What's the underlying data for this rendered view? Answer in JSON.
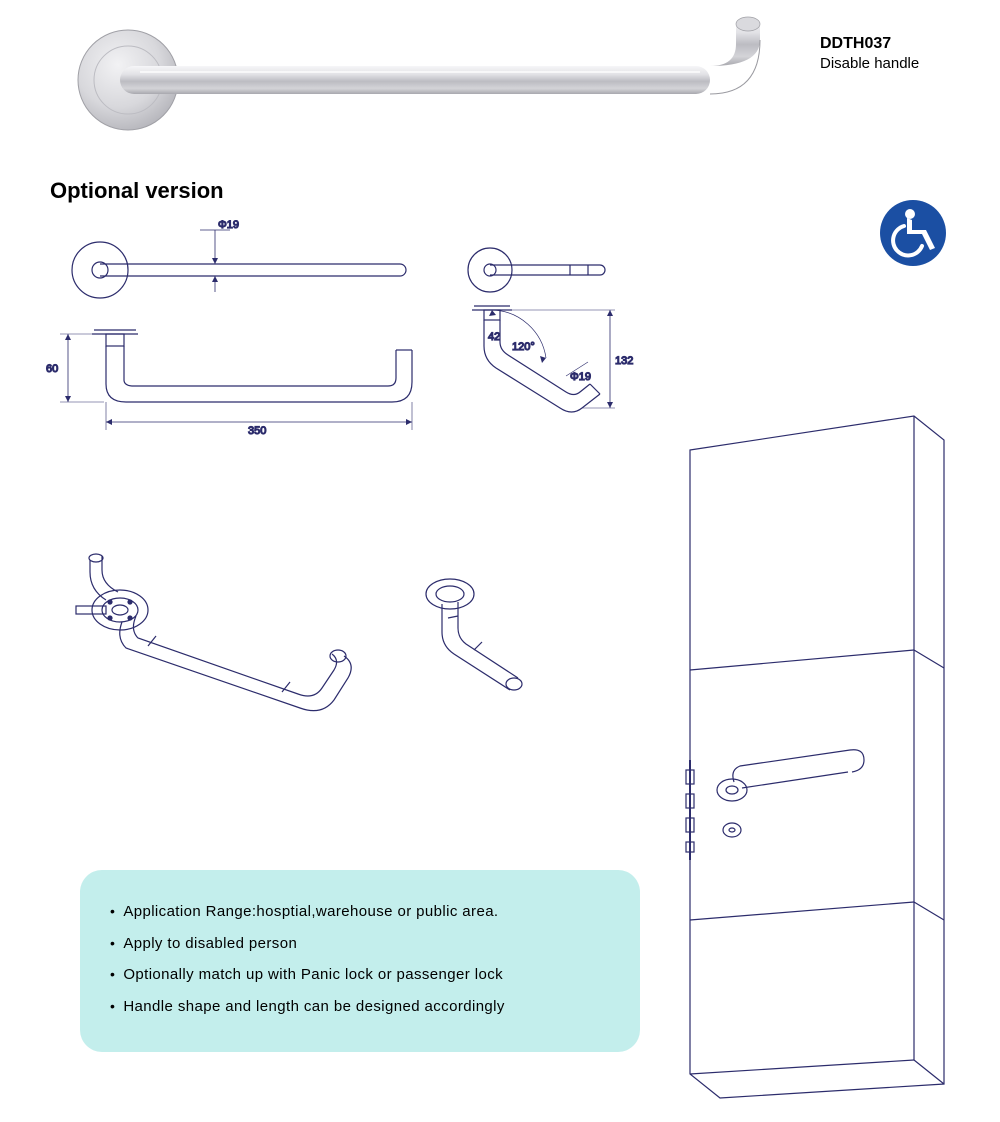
{
  "product": {
    "code": "DDTH037",
    "name": "Disable handle"
  },
  "section_title": "Optional version",
  "colors": {
    "line": "#2c2c6c",
    "handle_light": "#e8e8ea",
    "handle_mid": "#c8c8cc",
    "handle_dark": "#9a9aa0",
    "info_bg": "#c3eeec",
    "badge_bg": "#1b4fa3",
    "badge_fg": "#ffffff",
    "text": "#000000"
  },
  "dimensions": {
    "diameter_label": "Φ19",
    "height_label": "60",
    "length_label": "350",
    "angle_label": "120°",
    "angled_height_label": "132",
    "angled_dia_label": "Φ19",
    "angled_inner_label": "42"
  },
  "info": {
    "items": [
      "Application Range:hosptial,warehouse or public area.",
      "Apply to disabled person",
      "Optionally match up with Panic lock or passenger lock",
      "Handle shape and length can be designed accordingly"
    ]
  },
  "style": {
    "title_fontsize": 22,
    "code_fontsize": 16,
    "body_fontsize": 15,
    "dim_fontsize": 11,
    "info_radius": 22,
    "line_width": 1.2
  }
}
